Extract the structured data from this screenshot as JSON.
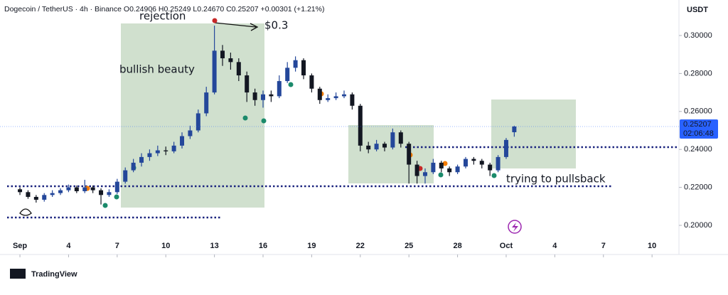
{
  "chart_data": {
    "type": "candlestick",
    "title": "Dogecoin / TetherUS · 4h · Binance  O0.24906  H0.25249  L0.24670  C0.25207  +0.00301 (+1.21%)",
    "currency": "USDT",
    "brand": "TradingView",
    "annotations": [
      "rejection",
      "$0.3",
      "bullish beauty",
      "trying to pullsback"
    ],
    "last_price_label": "0.25207",
    "countdown": "02:06:48",
    "up_color": "#24479a",
    "down_color": "#131722",
    "price_color": "#2962ff",
    "grid": false,
    "x": [
      1,
      1.5,
      2,
      2.5,
      3,
      3.5,
      4,
      4.5,
      5,
      5.5,
      6,
      6.5,
      7,
      7.5,
      8,
      8.5,
      9,
      9.5,
      10,
      10.5,
      11,
      11.5,
      12,
      12.5,
      13,
      13.5,
      14,
      14.5,
      15,
      15.5,
      16,
      16.5,
      17,
      17.5,
      18,
      18.5,
      19,
      19.5,
      20,
      20.5,
      21,
      21.5,
      22,
      22.5,
      23,
      23.5,
      24,
      24.5,
      25,
      25.5,
      26,
      26.5,
      27,
      27.5,
      28,
      28.5,
      29,
      29.5,
      30,
      30.5,
      31,
      31.5
    ],
    "open": [
      0.219,
      0.2175,
      0.215,
      0.2135,
      0.216,
      0.217,
      0.2185,
      0.22,
      0.218,
      0.22,
      0.2185,
      0.216,
      0.2175,
      0.223,
      0.229,
      0.233,
      0.236,
      0.238,
      0.2395,
      0.239,
      0.242,
      0.247,
      0.25,
      0.259,
      0.27,
      0.292,
      0.288,
      0.286,
      0.279,
      0.27,
      0.266,
      0.269,
      0.268,
      0.276,
      0.283,
      0.287,
      0.279,
      0.272,
      0.266,
      0.267,
      0.268,
      0.269,
      0.263,
      0.242,
      0.24,
      0.243,
      0.241,
      0.249,
      0.243,
      0.232,
      0.226,
      0.228,
      0.233,
      0.23,
      0.228,
      0.231,
      0.235,
      0.234,
      0.232,
      0.229,
      0.236,
      0.24906
    ],
    "high": [
      0.22,
      0.2185,
      0.216,
      0.217,
      0.2185,
      0.2195,
      0.2215,
      0.221,
      0.224,
      0.221,
      0.2195,
      0.219,
      0.2245,
      0.2305,
      0.235,
      0.238,
      0.24,
      0.242,
      0.2415,
      0.244,
      0.249,
      0.2525,
      0.261,
      0.273,
      0.3052,
      0.295,
      0.291,
      0.288,
      0.281,
      0.272,
      0.271,
      0.271,
      0.279,
      0.286,
      0.289,
      0.288,
      0.28,
      0.273,
      0.269,
      0.27,
      0.271,
      0.27,
      0.264,
      0.244,
      0.245,
      0.244,
      0.251,
      0.25,
      0.244,
      0.234,
      0.23,
      0.235,
      0.234,
      0.231,
      0.232,
      0.236,
      0.236,
      0.235,
      0.233,
      0.237,
      0.246,
      0.25249
    ],
    "low": [
      0.216,
      0.214,
      0.212,
      0.2125,
      0.215,
      0.216,
      0.2175,
      0.217,
      0.217,
      0.217,
      0.211,
      0.215,
      0.2165,
      0.222,
      0.228,
      0.231,
      0.234,
      0.2365,
      0.237,
      0.238,
      0.2405,
      0.2455,
      0.249,
      0.2575,
      0.269,
      0.284,
      0.282,
      0.276,
      0.265,
      0.263,
      0.262,
      0.265,
      0.267,
      0.275,
      0.281,
      0.277,
      0.27,
      0.264,
      0.265,
      0.266,
      0.267,
      0.261,
      0.239,
      0.238,
      0.239,
      0.239,
      0.24,
      0.241,
      0.222,
      0.222,
      0.222,
      0.227,
      0.228,
      0.226,
      0.227,
      0.23,
      0.232,
      0.23,
      0.226,
      0.228,
      0.235,
      0.2467
    ],
    "close": [
      0.2175,
      0.215,
      0.2135,
      0.216,
      0.217,
      0.2185,
      0.22,
      0.218,
      0.22,
      0.2185,
      0.216,
      0.2175,
      0.223,
      0.229,
      0.233,
      0.236,
      0.238,
      0.2395,
      0.239,
      0.242,
      0.247,
      0.25,
      0.259,
      0.27,
      0.292,
      0.288,
      0.286,
      0.279,
      0.27,
      0.266,
      0.269,
      0.268,
      0.276,
      0.283,
      0.287,
      0.279,
      0.272,
      0.266,
      0.267,
      0.268,
      0.269,
      0.263,
      0.242,
      0.24,
      0.243,
      0.241,
      0.249,
      0.243,
      0.232,
      0.226,
      0.228,
      0.233,
      0.23,
      0.228,
      0.231,
      0.235,
      0.234,
      0.232,
      0.229,
      0.236,
      0.245,
      0.25207
    ],
    "xlim": [
      -0.23,
      41.66
    ],
    "xticks": [
      {
        "value": 1,
        "label": "Sep"
      },
      4,
      7,
      10,
      13,
      16,
      19,
      22,
      25,
      28,
      {
        "value": 31,
        "label": "Oct"
      },
      {
        "value": 34,
        "label": "4"
      },
      {
        "value": 37,
        "label": "7"
      },
      {
        "value": 40,
        "label": "10"
      }
    ],
    "ylim": [
      0.1944,
      0.3187
    ],
    "yticks": [
      {
        "value": 0.2,
        "label": "0.20000"
      },
      {
        "value": 0.22,
        "label": "0.22000"
      },
      {
        "value": 0.24,
        "label": "0.24000"
      },
      {
        "value": 0.26,
        "label": "0.26000"
      },
      {
        "value": 0.28,
        "label": "0.28000"
      },
      {
        "value": 0.3,
        "label": "0.30000"
      }
    ]
  }
}
